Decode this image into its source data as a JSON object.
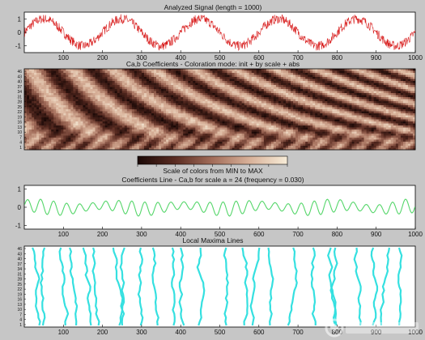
{
  "chart_data": [
    {
      "type": "line",
      "title": "Analyzed Signal  (length = 1000)",
      "xlim": [
        0,
        1000
      ],
      "ylim": [
        -1.5,
        1.5
      ],
      "xticks": [
        100,
        200,
        300,
        400,
        500,
        600,
        700,
        800,
        900,
        1000
      ],
      "yticks": [
        -1,
        0,
        1
      ],
      "series": [
        {
          "signal": "sine",
          "amplitude": 1,
          "period": 200,
          "phase_samples": 0,
          "noise_amplitude": 0.35,
          "color": "#d81e1e"
        }
      ]
    },
    {
      "type": "heatmap",
      "title": "Ca,b Coefficients - Coloration mode: init + by scale + abs",
      "xlim": [
        0,
        1000
      ],
      "yticks": [
        1,
        4,
        7,
        10,
        13,
        16,
        19,
        22,
        25,
        28,
        31,
        34,
        37,
        40,
        43,
        46
      ],
      "colormap": [
        "#1a0806",
        "#5a2c22",
        "#a36d5a",
        "#d9b29a",
        "#f7ecd8"
      ],
      "colorbar_label": "Scale of colors from MIN to MAX"
    },
    {
      "type": "line",
      "title": "Coefficients Line - Ca,b for scale a = 24  (frequency =  0.030)",
      "xlim": [
        0,
        1000
      ],
      "ylim": [
        -1.2,
        1.2
      ],
      "xticks": [
        100,
        200,
        300,
        400,
        500,
        600,
        700,
        800,
        900,
        1000
      ],
      "yticks": [
        -1,
        0,
        1
      ],
      "series": [
        {
          "signal": "oscillation",
          "frequency": 0.03,
          "amplitude": 0.4,
          "color": "#55d66a"
        }
      ]
    },
    {
      "type": "scatter",
      "title": "Local Maxima Lines",
      "xlim": [
        0,
        1000
      ],
      "xticks": [
        100,
        200,
        300,
        400,
        500,
        600,
        700,
        800,
        900,
        1000
      ],
      "yticks": [
        1,
        4,
        7,
        10,
        13,
        16,
        19,
        22,
        25,
        28,
        31,
        34,
        37,
        40,
        43,
        46
      ],
      "color": "#35e0e0",
      "maxima_line_positions": [
        22,
        55,
        95,
        115,
        150,
        180,
        225,
        260,
        295,
        330,
        375,
        400,
        455,
        520,
        560,
        600,
        625,
        690,
        735,
        780,
        800,
        850,
        895,
        935,
        960
      ]
    }
  ],
  "watermark": {
    "name": "electronic-fans-logo",
    "text": "电子发烧友"
  }
}
